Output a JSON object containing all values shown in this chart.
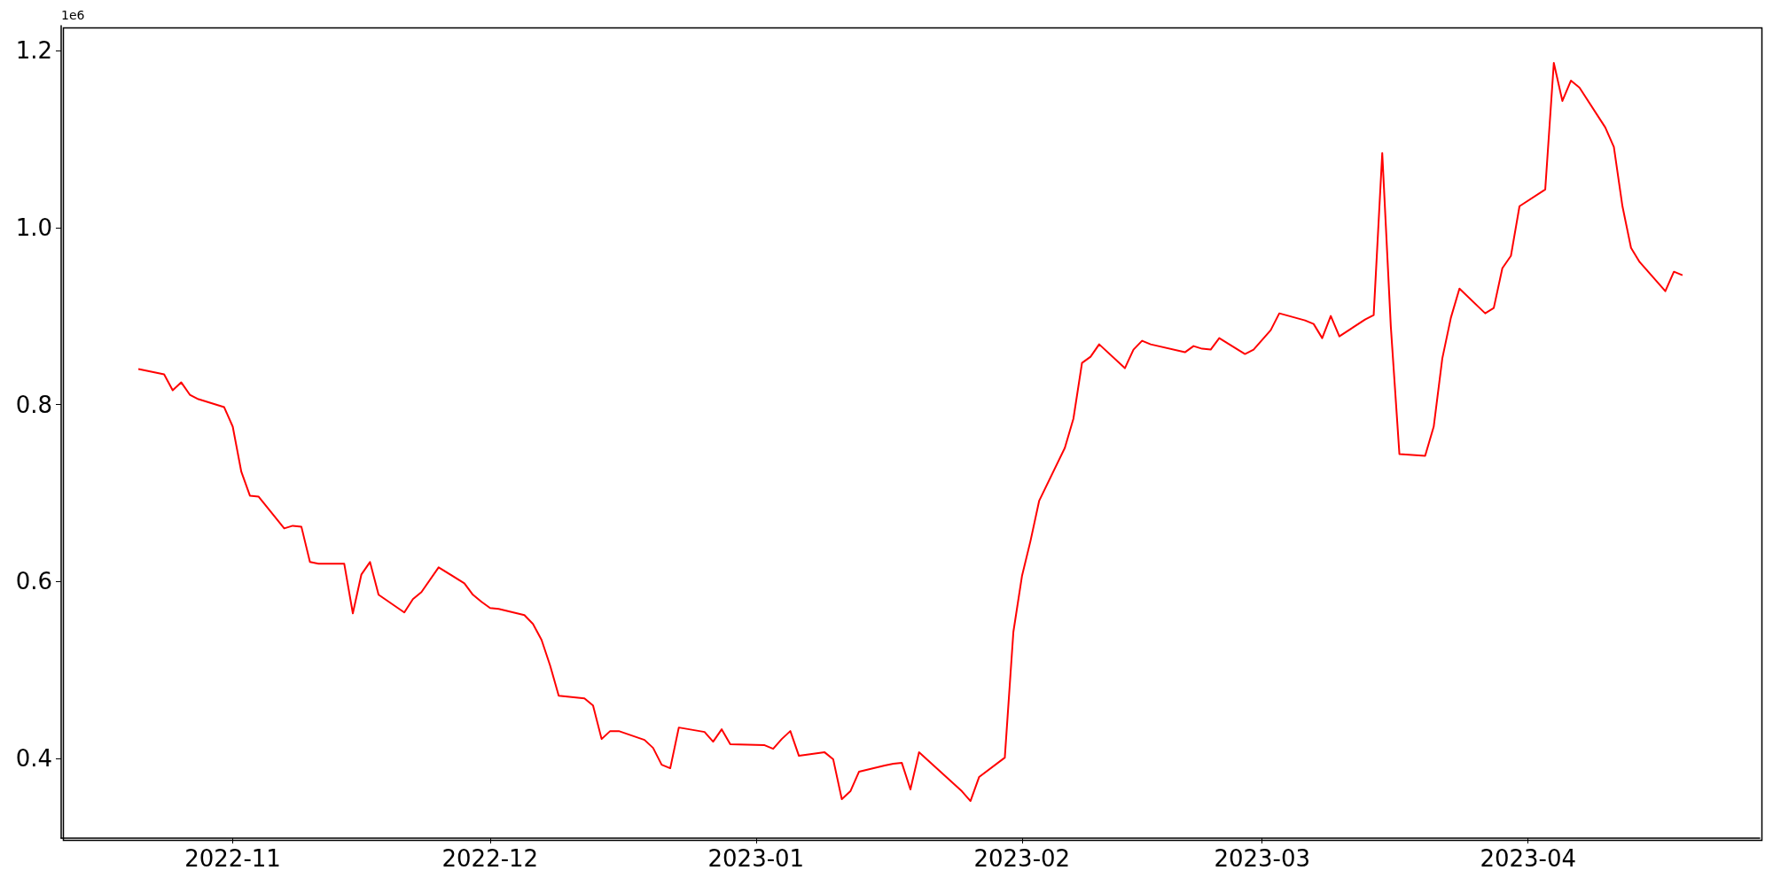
{
  "chart_data": {
    "type": "line",
    "x": [
      "2022-10-21",
      "2022-10-24",
      "2022-10-25",
      "2022-10-26",
      "2022-10-27",
      "2022-10-28",
      "2022-10-31",
      "2022-11-01",
      "2022-11-02",
      "2022-11-03",
      "2022-11-04",
      "2022-11-07",
      "2022-11-08",
      "2022-11-09",
      "2022-11-10",
      "2022-11-11",
      "2022-11-14",
      "2022-11-15",
      "2022-11-16",
      "2022-11-17",
      "2022-11-18",
      "2022-11-21",
      "2022-11-22",
      "2022-11-23",
      "2022-11-25",
      "2022-11-28",
      "2022-11-29",
      "2022-11-30",
      "2022-12-01",
      "2022-12-02",
      "2022-12-05",
      "2022-12-06",
      "2022-12-07",
      "2022-12-08",
      "2022-12-09",
      "2022-12-12",
      "2022-12-13",
      "2022-12-14",
      "2022-12-15",
      "2022-12-16",
      "2022-12-19",
      "2022-12-20",
      "2022-12-21",
      "2022-12-22",
      "2022-12-23",
      "2022-12-26",
      "2022-12-27",
      "2022-12-28",
      "2022-12-29",
      "2023-01-02",
      "2023-01-03",
      "2023-01-04",
      "2023-01-05",
      "2023-01-06",
      "2023-01-09",
      "2023-01-10",
      "2023-01-11",
      "2023-01-12",
      "2023-01-13",
      "2023-01-16",
      "2023-01-17",
      "2023-01-18",
      "2023-01-19",
      "2023-01-20",
      "2023-01-25",
      "2023-01-26",
      "2023-01-27",
      "2023-01-30",
      "2023-01-31",
      "2023-02-01",
      "2023-02-02",
      "2023-02-03",
      "2023-02-06",
      "2023-02-07",
      "2023-02-08",
      "2023-02-09",
      "2023-02-10",
      "2023-02-13",
      "2023-02-14",
      "2023-02-15",
      "2023-02-16",
      "2023-02-20",
      "2023-02-21",
      "2023-02-22",
      "2023-02-23",
      "2023-02-24",
      "2023-02-27",
      "2023-02-28",
      "2023-03-02",
      "2023-03-03",
      "2023-03-06",
      "2023-03-07",
      "2023-03-08",
      "2023-03-09",
      "2023-03-10",
      "2023-03-13",
      "2023-03-14",
      "2023-03-15",
      "2023-03-16",
      "2023-03-17",
      "2023-03-20",
      "2023-03-21",
      "2023-03-22",
      "2023-03-23",
      "2023-03-24",
      "2023-03-27",
      "2023-03-28",
      "2023-03-29",
      "2023-03-30",
      "2023-03-31",
      "2023-04-03",
      "2023-04-04",
      "2023-04-05",
      "2023-04-06",
      "2023-04-07",
      "2023-04-10",
      "2023-04-11",
      "2023-04-12",
      "2023-04-13",
      "2023-04-14",
      "2023-04-17",
      "2023-04-18",
      "2023-04-19"
    ],
    "series": [
      {
        "color": "#ff0000",
        "values": [
          0.84,
          0.834,
          0.816,
          0.825,
          0.811,
          0.806,
          0.797,
          0.775,
          0.724,
          0.697,
          0.696,
          0.66,
          0.663,
          0.662,
          0.622,
          0.62,
          0.62,
          0.564,
          0.608,
          0.622,
          0.585,
          0.565,
          0.58,
          0.588,
          0.616,
          0.598,
          0.585,
          0.577,
          0.57,
          0.569,
          0.562,
          0.552,
          0.534,
          0.505,
          0.471,
          0.468,
          0.46,
          0.422,
          0.431,
          0.431,
          0.421,
          0.412,
          0.393,
          0.389,
          0.435,
          0.43,
          0.419,
          0.433,
          0.416,
          0.415,
          0.411,
          0.422,
          0.431,
          0.403,
          0.407,
          0.399,
          0.354,
          0.363,
          0.385,
          0.392,
          0.394,
          0.395,
          0.365,
          0.407,
          0.363,
          0.352,
          0.379,
          0.401,
          0.543,
          0.606,
          0.646,
          0.691,
          0.751,
          0.784,
          0.847,
          0.854,
          0.868,
          0.841,
          0.862,
          0.872,
          0.868,
          0.859,
          0.866,
          0.863,
          0.862,
          0.875,
          0.857,
          0.862,
          0.884,
          0.903,
          0.895,
          0.891,
          0.875,
          0.9,
          0.877,
          0.896,
          0.901,
          1.084,
          0.888,
          0.744,
          0.742,
          0.775,
          0.852,
          0.898,
          0.931,
          0.903,
          0.909,
          0.954,
          0.968,
          1.024,
          1.043,
          1.186,
          1.143,
          1.166,
          1.158,
          1.113,
          1.091,
          1.024,
          0.977,
          0.961,
          0.928,
          0.95,
          0.946
        ]
      }
    ],
    "xlim": [
      "2022-10-12",
      "2023-04-28"
    ],
    "xticks": [
      {
        "value": "2022-11-01",
        "label": "2022-11"
      },
      {
        "value": "2022-12-01",
        "label": "2022-12"
      },
      {
        "value": "2023-01-01",
        "label": "2023-01"
      },
      {
        "value": "2023-02-01",
        "label": "2023-02"
      },
      {
        "value": "2023-03-01",
        "label": "2023-03"
      },
      {
        "value": "2023-04-01",
        "label": "2023-04"
      }
    ],
    "ylim": [
      0.31,
      1.228
    ],
    "yticks": [
      0.4,
      0.6,
      0.8,
      {
        "value": 1,
        "label": "1.0"
      },
      1.2
    ],
    "annotations": [
      "1e6"
    ],
    "grid": false,
    "marker": "none",
    "line_style": "solid"
  }
}
